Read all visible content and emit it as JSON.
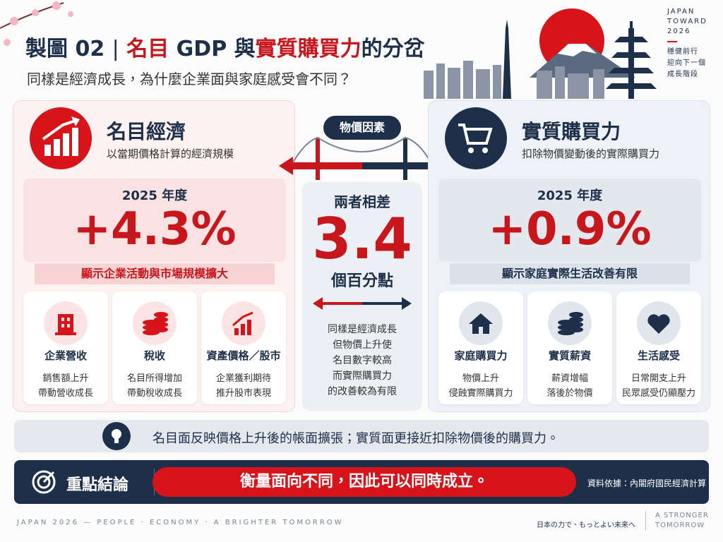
{
  "header": {
    "title_parts": [
      {
        "text": "製圖 02",
        "color": "#1e2f4a"
      },
      {
        "text": "|",
        "color": "#1e2f4a"
      },
      {
        "text": "名目",
        "color": "#c8161d"
      },
      {
        "text": "GDP 與",
        "color": "#1e2f4a"
      },
      {
        "text": "實質購買力",
        "color": "#c8161d"
      },
      {
        "text": "的分岔",
        "color": "#1e2f4a"
      }
    ],
    "subtitle": "同樣是經濟成長，為什麼企業面與家庭感受會不同？"
  },
  "corner": {
    "brand": [
      "JAPAN",
      "TOWARD",
      "2026"
    ],
    "tagline": [
      "穩健前行",
      "迎向下一個",
      "成長階段"
    ]
  },
  "left": {
    "title": "名目經濟",
    "subtitle": "以當期價格計算的經濟規模",
    "year": "2025 年度",
    "value": "+4.3%",
    "note": "顯示企業活動與市場規模擴大",
    "items": [
      {
        "title": "企業營收",
        "lines": [
          "銷售額上升",
          "帶動營收成長"
        ]
      },
      {
        "title": "稅收",
        "lines": [
          "名目所得增加",
          "帶動稅收成長"
        ]
      },
      {
        "title": "資產價格／股市",
        "lines": [
          "企業獲利期待",
          "推升股市表現"
        ]
      }
    ]
  },
  "center": {
    "badge": "物價因素",
    "label": "兩者相差",
    "value": "3.4",
    "unit": "個百分點",
    "lines": [
      "同樣是經濟成長",
      "但物價上升使",
      "名目數字較高",
      "而實際購買力",
      "的改善較為有限"
    ]
  },
  "right": {
    "title": "實質購買力",
    "subtitle": "扣除物價變動後的實際購買力",
    "year": "2025 年度",
    "value": "+0.9%",
    "note": "顯示家庭實際生活改善有限",
    "items": [
      {
        "title": "家庭購買力",
        "lines": [
          "物價上升",
          "侵蝕實際購買力"
        ]
      },
      {
        "title": "實質薪資",
        "lines": [
          "薪資增幅",
          "落後於物價"
        ]
      },
      {
        "title": "生活感受",
        "lines": [
          "日常開支上升",
          "民眾感受仍顯壓力"
        ]
      }
    ]
  },
  "insight": "名目面反映價格上升後的帳面擴張；實質面更接近扣除物價後的購買力。",
  "conclusion": {
    "label": "重點結論",
    "text": "衡量面向不同，因此可以同時成立。",
    "source": "資料依據：內閣府國民經濟計算"
  },
  "footer": {
    "left": "JAPAN 2026 — PEOPLE · ECONOMY · A BRIGHTER TOMORROW",
    "right_jp": "日本の力で、もっとよい未来へ",
    "right_en": [
      "A STRONGER",
      "TOMORROW"
    ]
  }
}
